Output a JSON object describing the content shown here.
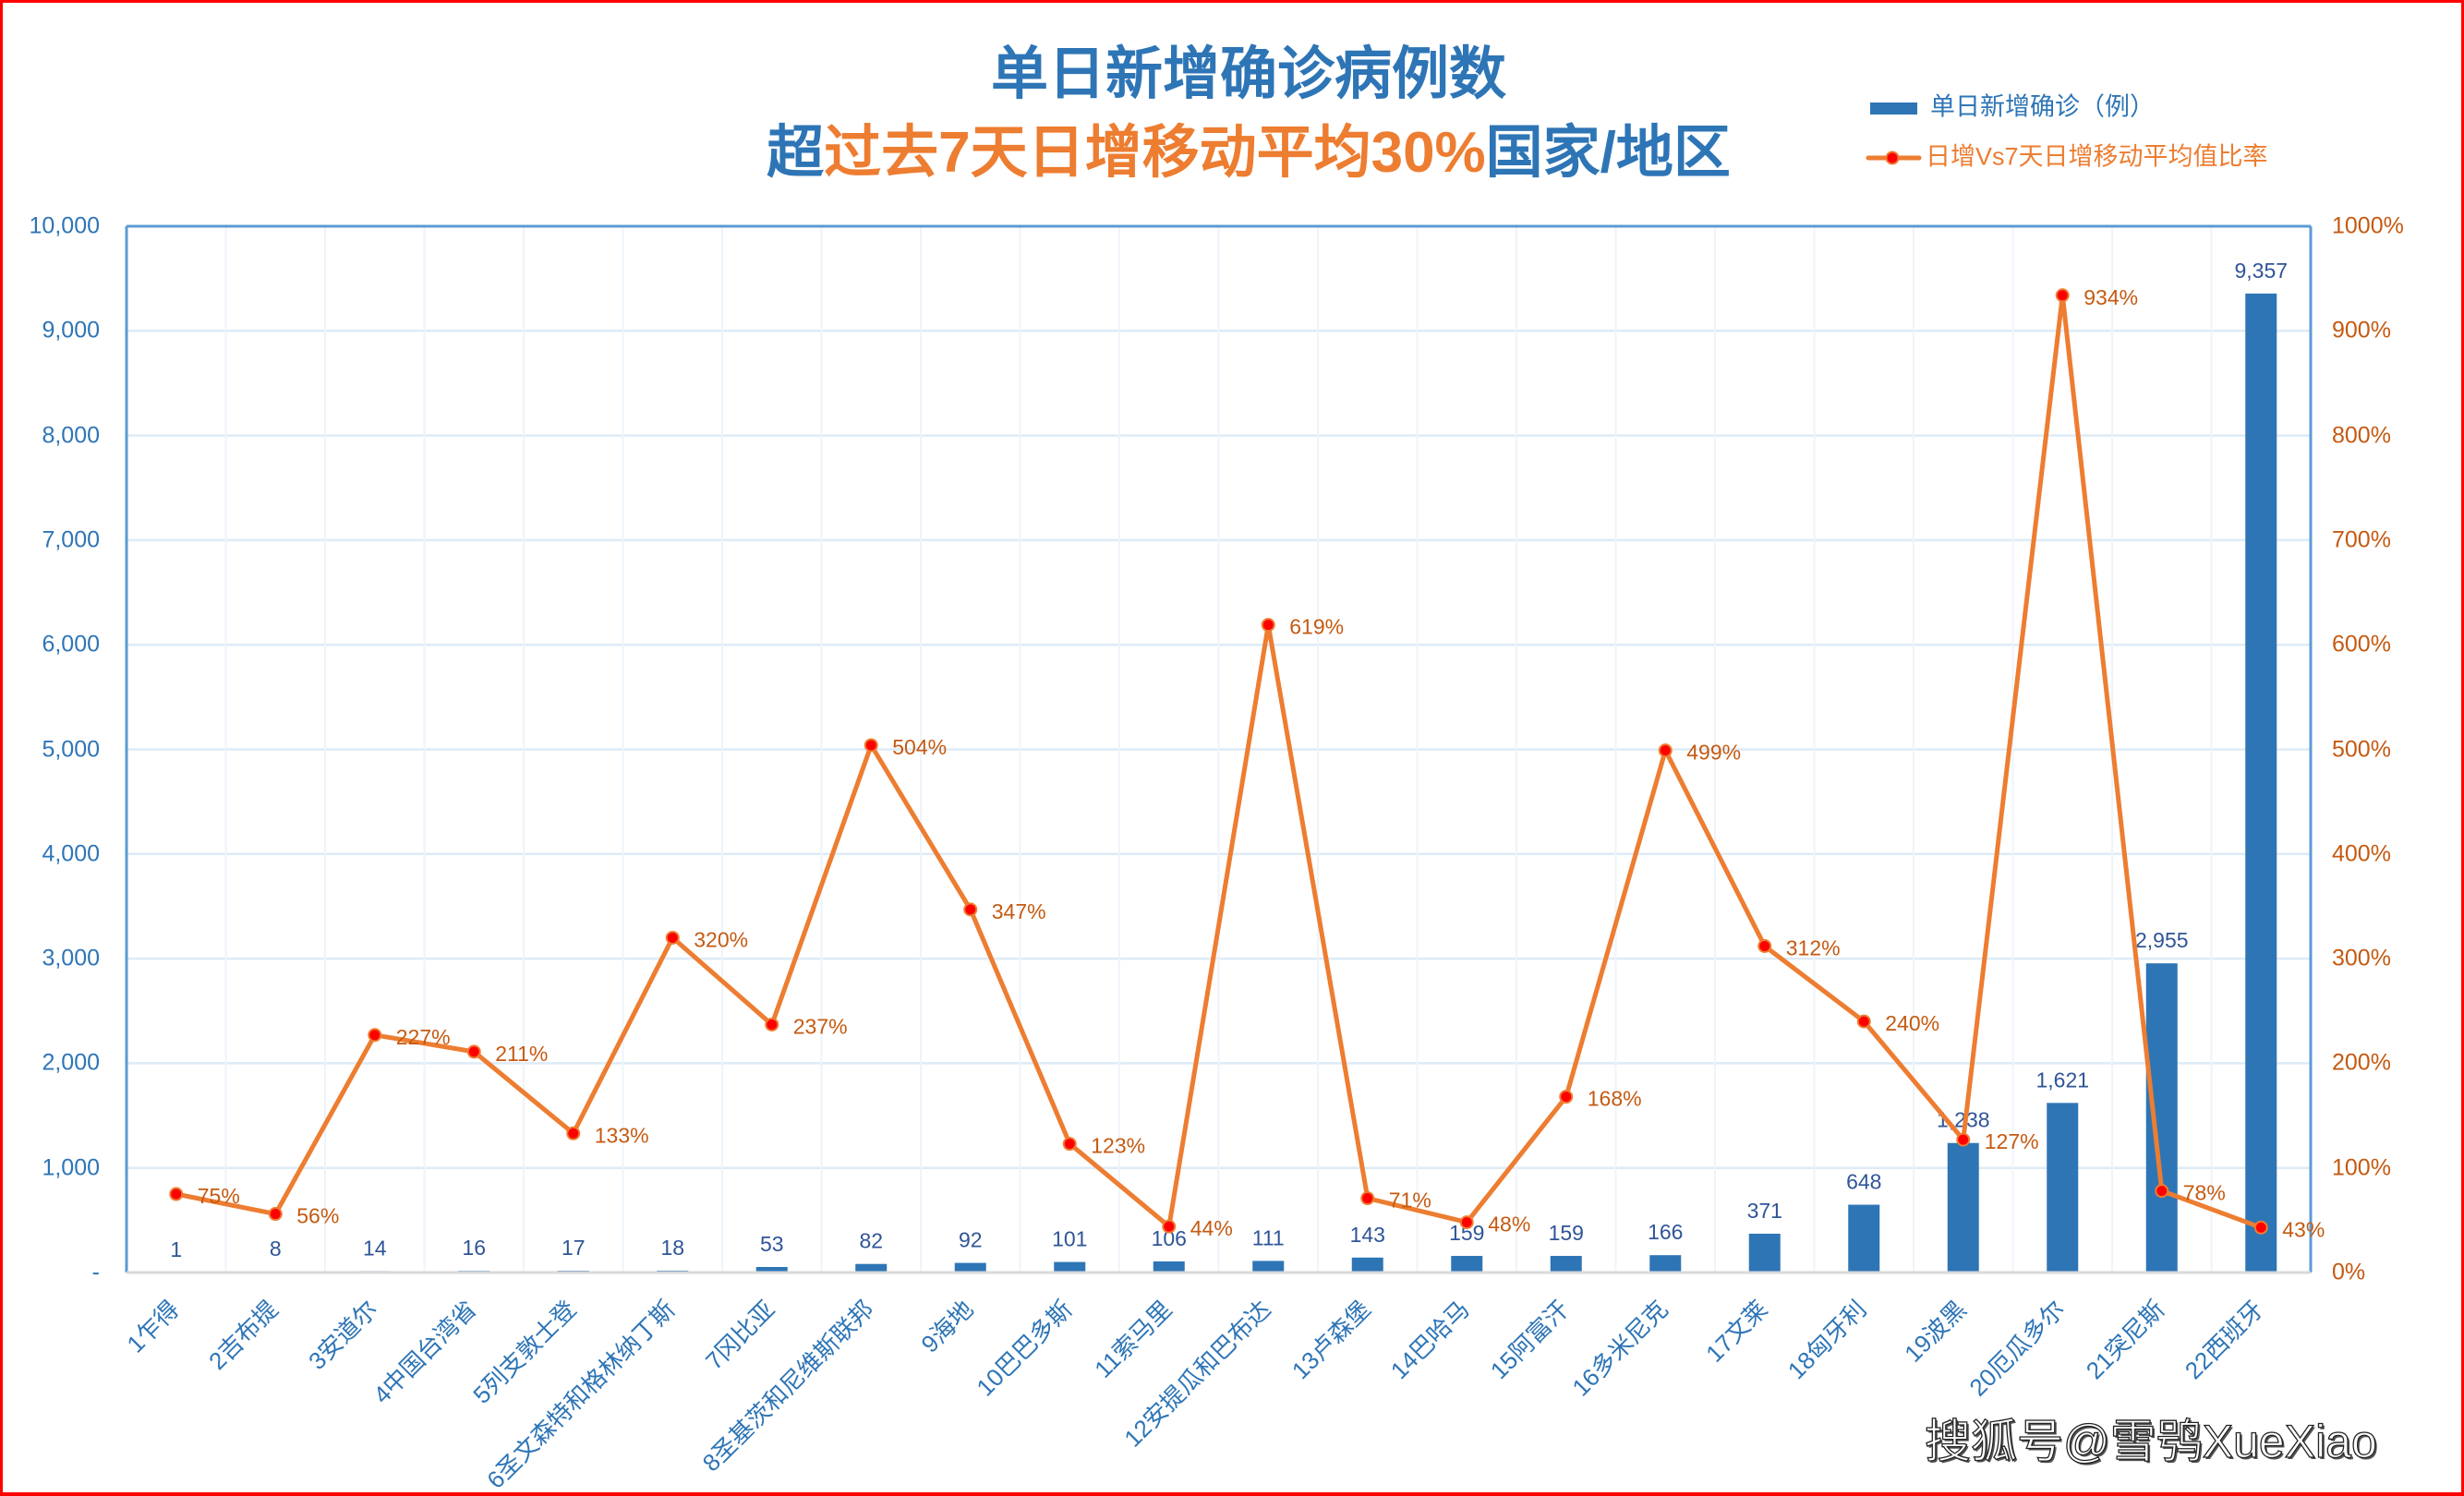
{
  "colors": {
    "bar_blue": "#2E75B6",
    "bar_label": "#2F5597",
    "line_orange": "#ED7D31",
    "line_label": "#C55A11",
    "marker_red": "#FF0000",
    "frame_red": "#FF0000",
    "grid": "#DDEBF7",
    "grid_vertical": "#EEF4FB",
    "plot_border": "#5B9BD5",
    "axis_line": "#D9D9D9"
  },
  "chart_data": {
    "type": "bar",
    "combo": [
      "bar",
      "line"
    ],
    "title": "单日新增确诊病例数",
    "subtitle": "超过去7天日增移动平均30%国家/地区",
    "subtitle_segments": [
      {
        "text": "超",
        "color": "blue"
      },
      {
        "text": "过去7天日增移动平均30%",
        "color": "orange"
      },
      {
        "text": "国家/地区",
        "color": "blue"
      }
    ],
    "xlabel": "",
    "ylabel": "",
    "y2label": "",
    "categories": [
      "1乍得",
      "2吉布提",
      "3安道尔",
      "4中国台湾省",
      "5列支敦士登",
      "6圣文森特和格林纳丁斯",
      "7冈比亚",
      "8圣基茨和尼维斯联邦",
      "9海地",
      "10巴巴多斯",
      "11索马里",
      "12安提瓜和巴布达",
      "13卢森堡",
      "14巴哈马",
      "15阿富汗",
      "16多米尼克",
      "17文莱",
      "18匈牙利",
      "19波黑",
      "20厄瓜多尔",
      "21突尼斯",
      "22西班牙"
    ],
    "series": [
      {
        "name": "单日新增确诊（例）",
        "type": "bar",
        "axis": "left",
        "values": [
          1,
          8,
          14,
          16,
          17,
          18,
          53,
          82,
          92,
          101,
          106,
          111,
          143,
          159,
          159,
          166,
          371,
          648,
          1238,
          1621,
          2955,
          9357
        ],
        "labels": [
          "1",
          "8",
          "14",
          "16",
          "17",
          "18",
          "53",
          "82",
          "92",
          "101",
          "106",
          "111",
          "143",
          "159",
          "159",
          "166",
          "371",
          "648",
          "1,238",
          "1,621",
          "2,955",
          "9,357"
        ]
      },
      {
        "name": "日增Vs7天日增移动平均值比率",
        "type": "line",
        "axis": "right",
        "unit": "%",
        "values": [
          75,
          56,
          227,
          211,
          133,
          320,
          237,
          504,
          347,
          123,
          44,
          619,
          71,
          48,
          168,
          499,
          312,
          240,
          127,
          934,
          78,
          43
        ],
        "labels": [
          "75%",
          "56%",
          "227%",
          "211%",
          "133%",
          "320%",
          "237%",
          "504%",
          "347%",
          "123%",
          "44%",
          "619%",
          "71%",
          "48%",
          "168%",
          "499%",
          "312%",
          "240%",
          "127%",
          "934%",
          "78%",
          "43%"
        ]
      }
    ],
    "ylim": [
      0,
      10000
    ],
    "y_left": {
      "min": 0,
      "max": 10000,
      "step": 1000,
      "ticks": [
        "-",
        "1,000",
        "2,000",
        "3,000",
        "4,000",
        "5,000",
        "6,000",
        "7,000",
        "8,000",
        "9,000",
        "10,000"
      ]
    },
    "y_right": {
      "min": 0,
      "max": 1000,
      "step": 100,
      "ticks": [
        "0%",
        "100%",
        "200%",
        "300%",
        "400%",
        "500%",
        "600%",
        "700%",
        "800%",
        "900%",
        "1000%"
      ]
    },
    "legend": {
      "position": "top-right"
    },
    "grid": true
  },
  "watermark": {
    "text": "搜狐号@雪鸮XueXiao"
  }
}
